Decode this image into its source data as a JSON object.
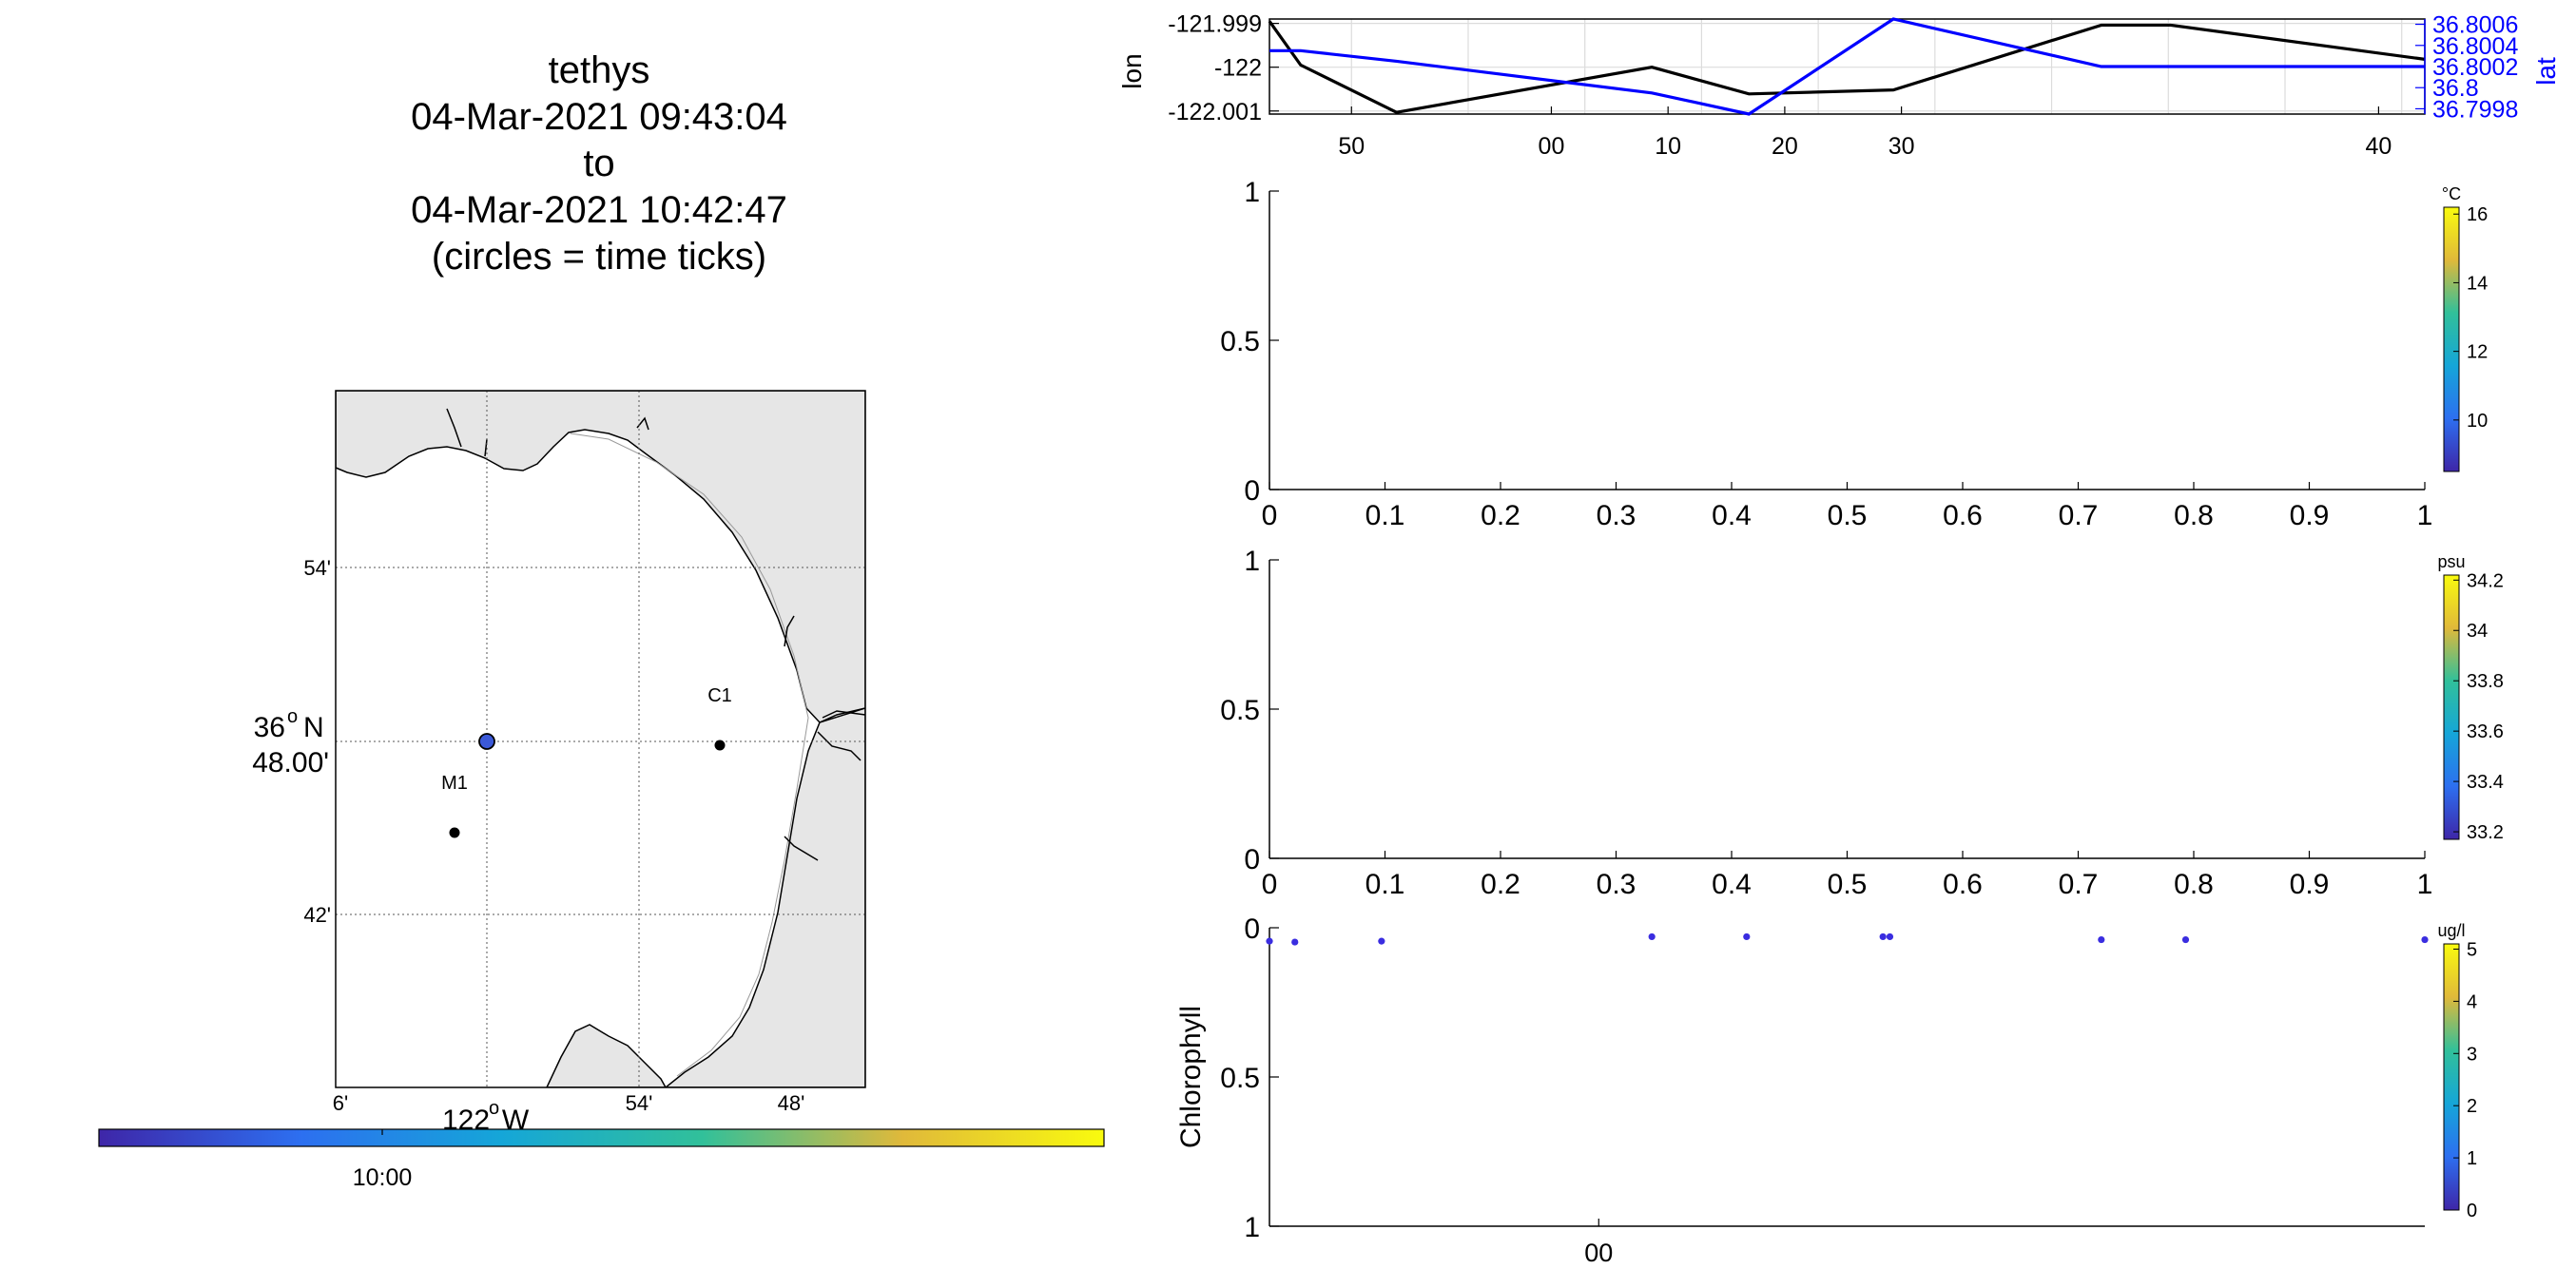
{
  "title": {
    "line1": "tethys",
    "line2": "04-Mar-2021 09:43:04",
    "line3": "to",
    "line4": "04-Mar-2021 10:42:47",
    "line5": "(circles = time ticks)"
  },
  "map": {
    "lat_labels": [
      "54'",
      "36",
      "N",
      "48.00'",
      "42'"
    ],
    "lat_deg_marker": "o",
    "lon_labels": [
      "6'",
      "122",
      "W",
      "54'",
      "48'"
    ],
    "lon_deg_marker": "o",
    "stations": [
      {
        "name": "C1"
      },
      {
        "name": "M1"
      }
    ],
    "land_color": "#e6e6e6",
    "coast_color": "#000000",
    "time_colorbar_tick": "10:00"
  },
  "chart_data": [
    {
      "type": "line",
      "panel": "position",
      "ylabel": "lon",
      "ylabel_right": "lat",
      "x_ticks": [
        "50",
        "00",
        "10",
        "20",
        "30",
        "40"
      ],
      "left_ticks": [
        "-121.999",
        "-122",
        "-122.001"
      ],
      "right_ticks": [
        "36.8006",
        "36.8004",
        "36.8002",
        "36.8",
        "36.7998"
      ],
      "lon_ylim": [
        -122.00107,
        -121.9989
      ],
      "lat_ylim": [
        36.79975,
        36.80065
      ],
      "series": [
        {
          "name": "lon",
          "color": "#000000",
          "x": [
            0,
            0.027,
            0.11,
            0.331,
            0.415,
            0.54,
            0.72,
            0.78,
            1.0
          ],
          "y": [
            -121.99895,
            -121.99995,
            -122.00103,
            -122.0,
            -122.00061,
            -122.00052,
            -121.99904,
            -121.99904,
            -121.99982
          ]
        },
        {
          "name": "lat",
          "color": "#0000ff",
          "x": [
            0,
            0.027,
            0.11,
            0.331,
            0.415,
            0.54,
            0.72,
            0.78,
            1.0
          ],
          "y": [
            36.80035,
            36.80035,
            36.80025,
            36.79995,
            36.79975,
            36.80065,
            36.8002,
            36.8002,
            36.8002
          ]
        }
      ]
    },
    {
      "type": "scatter",
      "panel": "temperature",
      "x_ticks": [
        "0",
        "0.1",
        "0.2",
        "0.3",
        "0.4",
        "0.5",
        "0.6",
        "0.7",
        "0.8",
        "0.9",
        "1"
      ],
      "y_ticks": [
        "1",
        "0.5",
        "0"
      ],
      "ylim": [
        0,
        1
      ],
      "colorbar": {
        "unit": "°C",
        "ticks": [
          "16",
          "14",
          "12",
          "10"
        ],
        "range": [
          8.5,
          16.2
        ]
      }
    },
    {
      "type": "scatter",
      "panel": "salinity",
      "x_ticks": [
        "0",
        "0.1",
        "0.2",
        "0.3",
        "0.4",
        "0.5",
        "0.6",
        "0.7",
        "0.8",
        "0.9",
        "1"
      ],
      "y_ticks": [
        "1",
        "0.5",
        "0"
      ],
      "ylim": [
        0,
        1
      ],
      "colorbar": {
        "unit": "psu",
        "ticks": [
          "34.2",
          "34",
          "33.8",
          "33.6",
          "33.4",
          "33.2"
        ],
        "range": [
          33.17,
          34.22
        ]
      }
    },
    {
      "type": "scatter",
      "panel": "chlorophyll",
      "ylabel": "Chlorophyll",
      "y_ticks": [
        "0",
        "0.5",
        "1"
      ],
      "ylim": [
        1,
        0
      ],
      "x_ticks": [
        "00"
      ],
      "x": [
        0.0,
        0.022,
        0.097,
        0.331,
        0.413,
        0.531,
        0.537,
        0.72,
        0.793,
        1.0
      ],
      "y": [
        0.045,
        0.048,
        0.045,
        0.03,
        0.03,
        0.03,
        0.03,
        0.04,
        0.04,
        0.04
      ],
      "point_color": "#3a2de0",
      "colorbar": {
        "unit": "ug/l",
        "ticks": [
          "5",
          "4",
          "3",
          "2",
          "1",
          "0"
        ],
        "range": [
          0,
          5.1
        ]
      }
    }
  ]
}
